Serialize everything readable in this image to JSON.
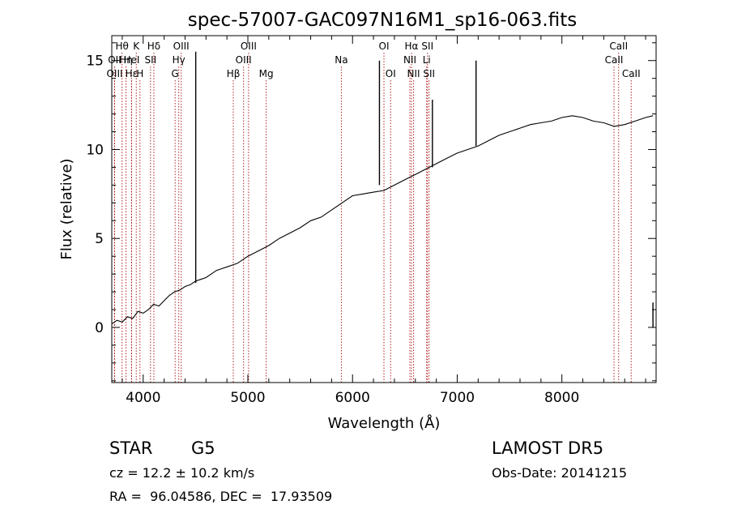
{
  "chart_data": {
    "type": "line",
    "title": "spec-57007-GAC097N16M1_sp16-063.fits",
    "xlabel": "Wavelength (Å)",
    "ylabel": "Flux (relative)",
    "xlim": [
      3700,
      8900
    ],
    "ylim": [
      -3.1,
      16.4
    ],
    "x_ticks": [
      4000,
      5000,
      6000,
      7000,
      8000
    ],
    "y_ticks": [
      0,
      5,
      10,
      15
    ],
    "grid": false,
    "line_color": "#000000",
    "marker_line_color": "#b22222",
    "spectrum": {
      "x": [
        3700,
        3750,
        3800,
        3850,
        3900,
        3950,
        4000,
        4050,
        4100,
        4150,
        4200,
        4250,
        4300,
        4350,
        4400,
        4450,
        4500,
        4550,
        4600,
        4650,
        4700,
        4750,
        4800,
        4850,
        4900,
        4950,
        5000,
        5100,
        5200,
        5300,
        5400,
        5500,
        5600,
        5700,
        5800,
        5900,
        6000,
        6100,
        6200,
        6300,
        6400,
        6500,
        6600,
        6700,
        6800,
        6900,
        7000,
        7100,
        7200,
        7300,
        7400,
        7500,
        7600,
        7700,
        7800,
        7900,
        8000,
        8100,
        8200,
        8300,
        8400,
        8500,
        8600,
        8700,
        8800,
        8870
      ],
      "y": [
        0.2,
        0.4,
        0.3,
        0.6,
        0.5,
        0.9,
        0.8,
        1.0,
        1.3,
        1.2,
        1.5,
        1.8,
        2.0,
        2.1,
        2.3,
        2.4,
        2.6,
        2.7,
        2.8,
        3.0,
        3.2,
        3.3,
        3.4,
        3.5,
        3.6,
        3.8,
        4.0,
        4.3,
        4.6,
        5.0,
        5.3,
        5.6,
        6.0,
        6.2,
        6.6,
        7.0,
        7.4,
        7.5,
        7.6,
        7.7,
        8.0,
        8.3,
        8.6,
        8.9,
        9.2,
        9.5,
        9.8,
        10.0,
        10.2,
        10.5,
        10.8,
        11.0,
        11.2,
        11.4,
        11.5,
        11.6,
        11.8,
        11.9,
        11.8,
        11.6,
        11.5,
        11.3,
        11.4,
        11.6,
        11.8,
        11.9
      ]
    },
    "features": [
      {
        "x": 4502,
        "y_top": 15.5,
        "y_bottom": 2.5
      },
      {
        "x": 6257,
        "y_top": 15.0,
        "y_bottom": 8.0
      },
      {
        "x": 6763,
        "y_top": 12.8,
        "y_bottom": 9.0
      },
      {
        "x": 7180,
        "y_top": 15.0,
        "y_bottom": 10.2
      },
      {
        "x": 8870,
        "y_top": 1.4,
        "y_bottom": 0.0
      }
    ],
    "lines": [
      {
        "label": "Hθ",
        "x": 3798,
        "row": 0,
        "dx": 0
      },
      {
        "label": "OII",
        "x": 3727,
        "row": 1,
        "dx": 0
      },
      {
        "label": "Hη",
        "x": 3836,
        "row": 1,
        "dx": 0
      },
      {
        "label": "OIII",
        "x": 3727,
        "row": 2,
        "dx": 0
      },
      {
        "label": "Hε",
        "x": 3889,
        "row": 2,
        "dx": 0
      },
      {
        "label": "K",
        "x": 3934,
        "row": 0,
        "dx": 0
      },
      {
        "label": "HeI",
        "x": 3889,
        "row": 1,
        "dx": 0
      },
      {
        "label": "H",
        "x": 3969,
        "row": 2,
        "dx": 0
      },
      {
        "label": "Hδ",
        "x": 4102,
        "row": 0,
        "dx": 0
      },
      {
        "label": "SII",
        "x": 4070,
        "row": 1,
        "dx": 0
      },
      {
        "label": "OIII",
        "x": 4363,
        "row": 0,
        "dx": 0
      },
      {
        "label": "Hγ",
        "x": 4340,
        "row": 1,
        "dx": 0
      },
      {
        "label": "G",
        "x": 4305,
        "row": 2,
        "dx": 0
      },
      {
        "label": "Hβ",
        "x": 4861,
        "row": 2,
        "dx": 0
      },
      {
        "label": "OIII",
        "x": 4959,
        "row": 1,
        "dx": 0
      },
      {
        "label": "OIII",
        "x": 5007,
        "row": 0,
        "dx": 0
      },
      {
        "label": "Mg",
        "x": 5175,
        "row": 2,
        "dx": 0
      },
      {
        "label": "Na",
        "x": 5893,
        "row": 1,
        "dx": 0
      },
      {
        "label": "OI",
        "x": 6300,
        "row": 0,
        "dx": 0
      },
      {
        "label": "OI",
        "x": 6364,
        "row": 2,
        "dx": 0
      },
      {
        "label": "Hα",
        "x": 6563,
        "row": 0,
        "dx": 0
      },
      {
        "label": "NII",
        "x": 6548,
        "row": 1,
        "dx": 0
      },
      {
        "label": "NII",
        "x": 6583,
        "row": 2,
        "dx": 0
      },
      {
        "label": "SII",
        "x": 6716,
        "row": 0,
        "dx": 0
      },
      {
        "label": "Li",
        "x": 6708,
        "row": 1,
        "dx": 0
      },
      {
        "label": "SII",
        "x": 6731,
        "row": 2,
        "dx": 0
      },
      {
        "label": "CaII",
        "x": 8542,
        "row": 0,
        "dx": 0
      },
      {
        "label": "CaII",
        "x": 8498,
        "row": 1,
        "dx": 0
      },
      {
        "label": "CaII",
        "x": 8662,
        "row": 2,
        "dx": 0
      }
    ]
  },
  "info": {
    "class_label": "STAR",
    "subclass_label": "G5",
    "cz_text": "cz = 12.2 ± 10.2 km/s",
    "coords_text": "RA =  96.04586, DEC =  17.93509",
    "survey_label": "LAMOST DR5",
    "obs_date_text": "Obs-Date: 20141215"
  }
}
